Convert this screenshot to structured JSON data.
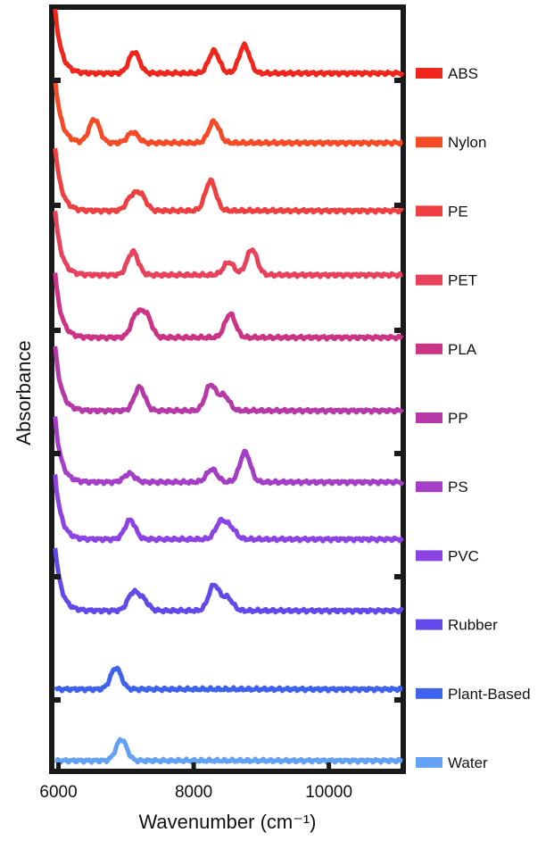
{
  "chart_data": {
    "type": "line",
    "title": "",
    "xlabel": "Wavenumber (cm⁻¹)",
    "ylabel": "Absorbance",
    "xlim": [
      5900,
      11100
    ],
    "xticks": [
      6000,
      8000,
      10000
    ],
    "grid": false,
    "legend_placement": "right",
    "y_ticks_unlabeled": true,
    "series": [
      {
        "name": "ABS",
        "color": "#f0261c",
        "peaks": [
          [
            7120,
            1.0
          ],
          [
            8300,
            1.05
          ],
          [
            8750,
            1.3
          ]
        ]
      },
      {
        "name": "Nylon",
        "color": "#f44a26",
        "peaks": [
          [
            6530,
            1.1
          ],
          [
            7100,
            0.5
          ],
          [
            8300,
            1.0
          ]
        ]
      },
      {
        "name": "PE",
        "color": "#ee4040",
        "peaks": [
          [
            7080,
            0.6
          ],
          [
            7220,
            0.7
          ],
          [
            8250,
            1.4
          ]
        ]
      },
      {
        "name": "PET",
        "color": "#e8415c",
        "peaks": [
          [
            7100,
            1.1
          ],
          [
            8520,
            0.6
          ],
          [
            8860,
            1.2
          ]
        ]
      },
      {
        "name": "PLA",
        "color": "#cc3385",
        "peaks": [
          [
            7150,
            1.0
          ],
          [
            7300,
            1.0
          ],
          [
            8540,
            1.1
          ]
        ]
      },
      {
        "name": "PP",
        "color": "#b53aa8",
        "peaks": [
          [
            7200,
            1.1
          ],
          [
            8250,
            1.2
          ],
          [
            8450,
            0.7
          ]
        ]
      },
      {
        "name": "PS",
        "color": "#a43ec6",
        "peaks": [
          [
            7050,
            0.4
          ],
          [
            8270,
            0.6
          ],
          [
            8760,
            1.4
          ]
        ]
      },
      {
        "name": "PVC",
        "color": "#8b43e3",
        "peaks": [
          [
            7060,
            0.9
          ],
          [
            8400,
            0.8
          ],
          [
            8550,
            0.5
          ]
        ]
      },
      {
        "name": "Rubber",
        "color": "#6349ea",
        "peaks": [
          [
            7100,
            0.8
          ],
          [
            7250,
            0.5
          ],
          [
            8300,
            1.2
          ],
          [
            8500,
            0.6
          ]
        ]
      },
      {
        "name": "Plant-Based",
        "color": "#3e62ec",
        "peaks": [
          [
            6850,
            1.0
          ]
        ]
      },
      {
        "name": "Water",
        "color": "#63a1f4",
        "peaks": [
          [
            6930,
            1.0
          ]
        ]
      }
    ]
  }
}
